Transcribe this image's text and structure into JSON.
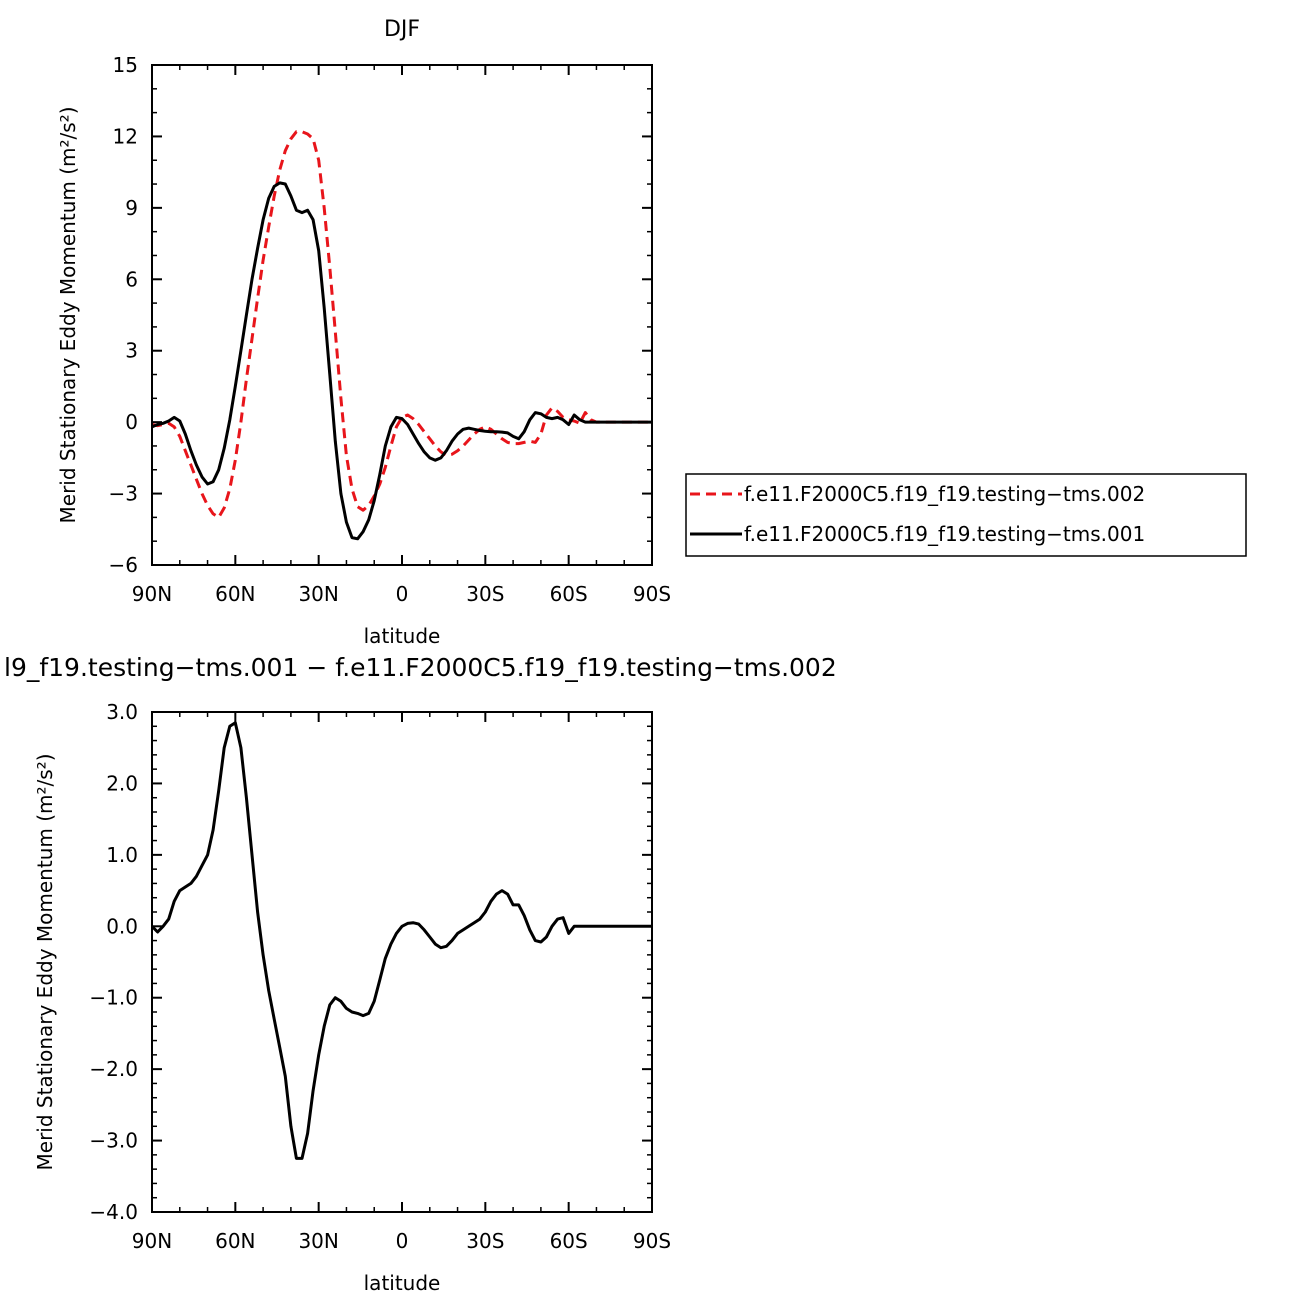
{
  "chart_data": [
    {
      "type": "line",
      "title": "DJF",
      "xlabel": "latitude",
      "ylabel": "Merid Stationary Eddy Momentum (m²/s²)",
      "xlim": [
        -90,
        90
      ],
      "ylim": [
        -6,
        15
      ],
      "xticks": [
        -90,
        -60,
        -30,
        0,
        30,
        60,
        90
      ],
      "xtick_labels": [
        "90N",
        "60N",
        "30N",
        "0",
        "30S",
        "60S",
        "90S"
      ],
      "yticks": [
        -6,
        -3,
        0,
        3,
        6,
        9,
        12,
        15
      ],
      "ytick_labels": [
        "−6",
        "−3",
        "0",
        "3",
        "6",
        "9",
        "12",
        "15"
      ],
      "grid": false,
      "legend": "right",
      "series": [
        {
          "name": "f.e11.F2000C5.f19_f19.testing−tms.002",
          "color": "#e8151b",
          "dash": "dashed",
          "x": [
            -90,
            -88,
            -86,
            -84,
            -82,
            -80,
            -78,
            -76,
            -74,
            -72,
            -70,
            -68,
            -66,
            -64,
            -62,
            -60,
            -58,
            -56,
            -54,
            -52,
            -50,
            -48,
            -46,
            -44,
            -42,
            -40,
            -38,
            -36,
            -34,
            -32,
            -30,
            -28,
            -26,
            -24,
            -22,
            -20,
            -18,
            -16,
            -14,
            -12,
            -10,
            -8,
            -6,
            -4,
            -2,
            0,
            2,
            4,
            6,
            8,
            10,
            12,
            14,
            16,
            18,
            20,
            22,
            24,
            26,
            28,
            30,
            32,
            34,
            36,
            38,
            40,
            42,
            44,
            46,
            48,
            50,
            52,
            54,
            56,
            58,
            60,
            62,
            64,
            66,
            68,
            70,
            72,
            74,
            76,
            78,
            80,
            82,
            84,
            86,
            88,
            90
          ],
          "y": [
            -0.1,
            -0.15,
            -0.1,
            -0.05,
            -0.2,
            -0.6,
            -1.2,
            -1.8,
            -2.4,
            -3.0,
            -3.5,
            -3.85,
            -4.0,
            -3.6,
            -2.8,
            -1.6,
            0.0,
            1.8,
            3.5,
            5.2,
            6.8,
            8.2,
            9.5,
            10.6,
            11.4,
            11.9,
            12.2,
            12.2,
            12.1,
            11.9,
            11.0,
            9.0,
            6.5,
            3.8,
            1.0,
            -1.4,
            -2.8,
            -3.55,
            -3.7,
            -3.5,
            -3.1,
            -2.6,
            -1.9,
            -1.0,
            -0.2,
            0.2,
            0.3,
            0.15,
            -0.1,
            -0.4,
            -0.7,
            -1.0,
            -1.25,
            -1.4,
            -1.35,
            -1.2,
            -1.0,
            -0.75,
            -0.5,
            -0.3,
            -0.2,
            -0.3,
            -0.5,
            -0.7,
            -0.85,
            -0.9,
            -0.9,
            -0.85,
            -0.8,
            -0.85,
            -0.5,
            0.3,
            0.6,
            0.45,
            0.2,
            0.1,
            0.05,
            -0.05,
            0.4,
            0.1,
            0.0,
            0.0,
            0.0,
            0.0,
            0.0,
            0.0,
            0.0,
            0.0,
            0.0,
            0.0,
            0.0
          ]
        },
        {
          "name": "f.e11.F2000C5.f19_f19.testing−tms.001",
          "color": "#000000",
          "dash": "solid",
          "x": [
            -90,
            -88,
            -86,
            -84,
            -82,
            -80,
            -78,
            -76,
            -74,
            -72,
            -70,
            -68,
            -66,
            -64,
            -62,
            -60,
            -58,
            -56,
            -54,
            -52,
            -50,
            -48,
            -46,
            -44,
            -42,
            -40,
            -38,
            -36,
            -34,
            -32,
            -30,
            -28,
            -26,
            -24,
            -22,
            -20,
            -18,
            -16,
            -14,
            -12,
            -10,
            -8,
            -6,
            -4,
            -2,
            0,
            2,
            4,
            6,
            8,
            10,
            12,
            14,
            16,
            18,
            20,
            22,
            24,
            26,
            28,
            30,
            32,
            34,
            36,
            38,
            40,
            42,
            44,
            46,
            48,
            50,
            52,
            54,
            56,
            58,
            60,
            62,
            64,
            66,
            68,
            70,
            72,
            74,
            76,
            78,
            80,
            82,
            84,
            86,
            88,
            90
          ],
          "y": [
            -0.2,
            -0.1,
            -0.05,
            0.05,
            0.2,
            0.05,
            -0.5,
            -1.2,
            -1.8,
            -2.3,
            -2.6,
            -2.5,
            -2.0,
            -1.1,
            0.1,
            1.5,
            3.0,
            4.5,
            6.0,
            7.3,
            8.5,
            9.4,
            9.9,
            10.05,
            10.0,
            9.5,
            8.9,
            8.8,
            8.9,
            8.5,
            7.2,
            4.8,
            2.0,
            -0.8,
            -3.0,
            -4.2,
            -4.85,
            -4.9,
            -4.6,
            -4.1,
            -3.3,
            -2.2,
            -1.0,
            -0.2,
            0.2,
            0.15,
            -0.1,
            -0.5,
            -0.9,
            -1.25,
            -1.5,
            -1.6,
            -1.5,
            -1.2,
            -0.8,
            -0.5,
            -0.3,
            -0.25,
            -0.3,
            -0.35,
            -0.38,
            -0.4,
            -0.4,
            -0.42,
            -0.45,
            -0.6,
            -0.7,
            -0.4,
            0.1,
            0.4,
            0.35,
            0.2,
            0.15,
            0.2,
            0.1,
            -0.1,
            0.3,
            0.1,
            0.0,
            0.0,
            0.0,
            0.0,
            0.0,
            0.0,
            0.0,
            0.0,
            0.0,
            0.0,
            0.0,
            0.0,
            0.0
          ]
        }
      ]
    },
    {
      "type": "line",
      "title": "l9_f19.testing−tms.001 − f.e11.F2000C5.f19_f19.testing−tms.002",
      "xlabel": "latitude",
      "ylabel": "Merid Stationary Eddy Momentum (m²/s²)",
      "xlim": [
        -90,
        90
      ],
      "ylim": [
        -4,
        3
      ],
      "xticks": [
        -90,
        -60,
        -30,
        0,
        30,
        60,
        90
      ],
      "xtick_labels": [
        "90N",
        "60N",
        "30N",
        "0",
        "30S",
        "60S",
        "90S"
      ],
      "yticks": [
        -4,
        -3,
        -2,
        -1,
        0,
        1,
        2,
        3
      ],
      "ytick_labels": [
        "−4.0",
        "−3.0",
        "−2.0",
        "−1.0",
        "0.0",
        "1.0",
        "2.0",
        "3.0"
      ],
      "grid": false,
      "series": [
        {
          "color": "#000000",
          "dash": "solid",
          "x": [
            -90,
            -88,
            -86,
            -84,
            -82,
            -80,
            -78,
            -76,
            -74,
            -72,
            -70,
            -68,
            -66,
            -64,
            -62,
            -60,
            -58,
            -56,
            -54,
            -52,
            -50,
            -48,
            -46,
            -44,
            -42,
            -40,
            -38,
            -36,
            -34,
            -32,
            -30,
            -28,
            -26,
            -24,
            -22,
            -20,
            -18,
            -16,
            -14,
            -12,
            -10,
            -8,
            -6,
            -4,
            -2,
            0,
            2,
            4,
            6,
            8,
            10,
            12,
            14,
            16,
            18,
            20,
            22,
            24,
            26,
            28,
            30,
            32,
            34,
            36,
            38,
            40,
            42,
            44,
            46,
            48,
            50,
            52,
            54,
            56,
            58,
            60,
            62,
            64,
            66,
            68,
            70,
            72,
            74,
            76,
            78,
            80,
            82,
            84,
            86,
            88,
            90
          ],
          "y": [
            0.0,
            -0.08,
            0.0,
            0.1,
            0.35,
            0.5,
            0.55,
            0.6,
            0.7,
            0.85,
            1.0,
            1.35,
            1.9,
            2.5,
            2.8,
            2.85,
            2.5,
            1.8,
            1.0,
            0.2,
            -0.4,
            -0.9,
            -1.3,
            -1.7,
            -2.1,
            -2.8,
            -3.25,
            -3.25,
            -2.9,
            -2.3,
            -1.8,
            -1.4,
            -1.1,
            -1.0,
            -1.05,
            -1.15,
            -1.2,
            -1.22,
            -1.25,
            -1.22,
            -1.05,
            -0.75,
            -0.45,
            -0.25,
            -0.1,
            0.0,
            0.04,
            0.05,
            0.03,
            -0.05,
            -0.15,
            -0.25,
            -0.3,
            -0.28,
            -0.2,
            -0.1,
            -0.05,
            0.0,
            0.05,
            0.1,
            0.2,
            0.35,
            0.45,
            0.5,
            0.45,
            0.3,
            0.3,
            0.15,
            -0.05,
            -0.2,
            -0.22,
            -0.15,
            0.0,
            0.1,
            0.12,
            -0.1,
            0.0,
            0.0,
            0.0,
            0.0,
            0.0,
            0.0,
            0.0,
            0.0,
            0.0,
            0.0,
            0.0,
            0.0,
            0.0,
            0.0,
            0.0
          ]
        }
      ]
    }
  ]
}
